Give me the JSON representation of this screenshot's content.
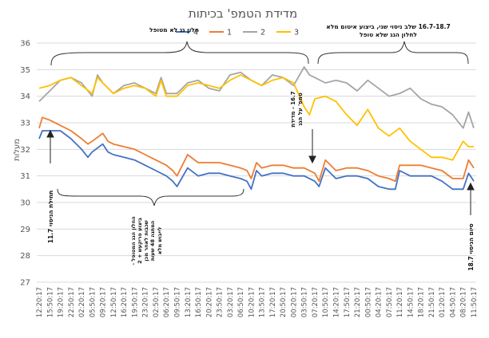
{
  "chart_data": {
    "type": "line",
    "title": "מדידת הטמפ' בכיתות",
    "ylabel": "מעלות",
    "ylim": [
      27,
      36
    ],
    "yticks": [
      27,
      28,
      29,
      30,
      31,
      32,
      33,
      34,
      35,
      36
    ],
    "grid": true,
    "legend_position": "top-right",
    "x_tick_labels": [
      "12:20:17",
      "15:50:17",
      "19:20:17",
      "22:50:17",
      "02:20:17",
      "05:50:17",
      "09:20:17",
      "12:50:17",
      "16:20:17",
      "19:50:17",
      "23:20:17",
      "02:50:17",
      "06:20:17",
      "09:50:17",
      "13:20:17",
      "16:50:17",
      "20:20:17",
      "23:50:17",
      "03:20:17",
      "06:50:17",
      "10:20:17",
      "13:50:17",
      "17:20:17",
      "20:50:17",
      "00:20:17",
      "03:50:17",
      "07:20:17",
      "10:50:17",
      "14:20:17",
      "17:50:17",
      "21:20:17",
      "00:50:17",
      "04:20:17",
      "07:50:17",
      "11:20:17",
      "14:50:17",
      "18:20:17",
      "21:50:17",
      "01:20:17",
      "04:50:17",
      "08:20:17",
      "11:50:17"
    ],
    "series": [
      {
        "name": "4",
        "color": "#4472C4",
        "x": [
          0,
          0.3,
          1,
          2,
          3,
          4,
          4.6,
          5,
          6,
          6.5,
          7,
          8,
          9,
          10,
          11,
          12,
          12.6,
          13,
          14,
          15,
          16,
          17,
          18,
          19,
          19.6,
          20,
          20.5,
          21,
          22,
          23,
          24,
          25,
          26,
          26.4,
          27,
          28,
          29,
          30,
          31,
          32,
          33,
          33.6,
          34,
          35,
          36,
          37,
          38,
          39,
          40,
          40.5,
          41
        ],
        "values": [
          32.4,
          32.7,
          32.7,
          32.7,
          32.4,
          32.0,
          31.7,
          31.9,
          32.2,
          31.9,
          31.8,
          31.7,
          31.6,
          31.4,
          31.2,
          31.0,
          30.8,
          30.6,
          31.3,
          31.0,
          31.1,
          31.1,
          31.0,
          30.9,
          30.8,
          30.5,
          31.2,
          31.0,
          31.1,
          31.1,
          31.0,
          31.0,
          30.8,
          30.6,
          31.3,
          30.9,
          31.0,
          31.0,
          30.9,
          30.6,
          30.5,
          30.5,
          31.2,
          31.0,
          31.0,
          31.0,
          30.8,
          30.5,
          30.5,
          31.1,
          30.8
        ]
      },
      {
        "name": "1",
        "color": "#ED7D31",
        "x": [
          0,
          0.3,
          1,
          2,
          3,
          4,
          4.6,
          5,
          6,
          6.5,
          7,
          8,
          9,
          10,
          11,
          12,
          12.6,
          13,
          14,
          15,
          16,
          17,
          18,
          19,
          19.6,
          20,
          20.5,
          21,
          22,
          23,
          24,
          25,
          26,
          26.4,
          27,
          28,
          29,
          30,
          31,
          32,
          33,
          33.6,
          34,
          35,
          36,
          37,
          38,
          39,
          40,
          40.5,
          41
        ],
        "values": [
          32.8,
          33.2,
          33.1,
          32.9,
          32.7,
          32.4,
          32.2,
          32.3,
          32.6,
          32.3,
          32.2,
          32.1,
          32.0,
          31.8,
          31.6,
          31.4,
          31.2,
          31.0,
          31.8,
          31.5,
          31.5,
          31.5,
          31.4,
          31.3,
          31.2,
          30.9,
          31.5,
          31.3,
          31.4,
          31.4,
          31.3,
          31.3,
          31.1,
          30.8,
          31.6,
          31.2,
          31.3,
          31.3,
          31.2,
          31.0,
          30.9,
          30.8,
          31.4,
          31.4,
          31.4,
          31.3,
          31.2,
          30.9,
          30.9,
          31.6,
          31.3
        ]
      },
      {
        "name": "2",
        "color": "#A5A5A5",
        "x": [
          0,
          1,
          2,
          3,
          4,
          5,
          5.5,
          6,
          7,
          8,
          9,
          10,
          11,
          11.5,
          12,
          13,
          14,
          15,
          16,
          17,
          18,
          19,
          20,
          21,
          22,
          23,
          24,
          25,
          25.5,
          26,
          27,
          28,
          29,
          30,
          31,
          32,
          33,
          34,
          35,
          36,
          37,
          38,
          39,
          40,
          40.5,
          41
        ],
        "values": [
          33.8,
          34.2,
          34.6,
          34.7,
          34.5,
          34.0,
          34.8,
          34.5,
          34.1,
          34.4,
          34.5,
          34.3,
          34.1,
          34.7,
          34.1,
          34.1,
          34.5,
          34.6,
          34.3,
          34.2,
          34.8,
          34.9,
          34.6,
          34.4,
          34.8,
          34.7,
          34.4,
          35.1,
          34.8,
          34.7,
          34.5,
          34.6,
          34.5,
          34.2,
          34.6,
          34.3,
          34.0,
          34.1,
          34.3,
          33.9,
          33.7,
          33.6,
          33.3,
          32.8,
          33.4,
          32.8
        ]
      },
      {
        "name": "3",
        "color": "#FFC000",
        "x": [
          0,
          1,
          2,
          3,
          4,
          5,
          5.5,
          6,
          7,
          8,
          9,
          10,
          11,
          11.5,
          12,
          13,
          14,
          15,
          16,
          17,
          18,
          19,
          20,
          21,
          22,
          23,
          24,
          25,
          25.5,
          26,
          27,
          28,
          29,
          30,
          31,
          32,
          33,
          34,
          35,
          36,
          37,
          38,
          39,
          40,
          40.5,
          41
        ],
        "values": [
          34.3,
          34.4,
          34.6,
          34.7,
          34.4,
          34.1,
          34.7,
          34.5,
          34.1,
          34.3,
          34.4,
          34.3,
          34.0,
          34.6,
          34.0,
          34.0,
          34.4,
          34.5,
          34.4,
          34.3,
          34.6,
          34.8,
          34.6,
          34.4,
          34.6,
          34.7,
          34.5,
          33.6,
          33.3,
          33.9,
          34.0,
          33.8,
          33.3,
          32.9,
          33.5,
          32.8,
          32.5,
          32.8,
          32.3,
          32.0,
          31.7,
          31.7,
          31.6,
          32.3,
          32.1,
          32.1
        ]
      }
    ],
    "annotations": [
      {
        "text": "חלון גג לא מטופל"
      },
      {
        "text": "16.7-18.7 שלב ניסוי שני, ביצוע איטום מלא לחלון הגג שלא טופל"
      },
      {
        "text": "16.7 - מדידת טמפ' על הגג"
      },
      {
        "text": "11.7 תחילת הניסוי"
      },
      {
        "text": "החלון הגג המטופל - ביצוע פריקעש + 2 שכבות לאחר מכן המתנה 48 שעות לייבוש מלא"
      },
      {
        "text": "18.7 סיום הניסוי"
      }
    ]
  }
}
